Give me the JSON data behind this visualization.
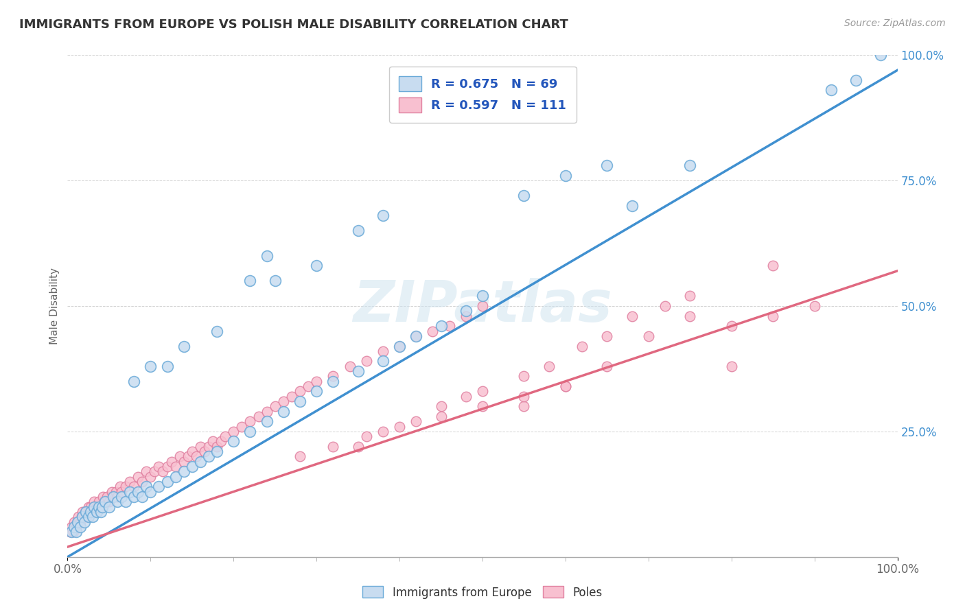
{
  "title": "IMMIGRANTS FROM EUROPE VS POLISH MALE DISABILITY CORRELATION CHART",
  "source": "Source: ZipAtlas.com",
  "ylabel": "Male Disability",
  "xlim": [
    0,
    100
  ],
  "ylim": [
    0,
    100
  ],
  "xticklabels": [
    "0.0%",
    "100.0%"
  ],
  "yticks": [
    25,
    50,
    75,
    100
  ],
  "yticklabels": [
    "25.0%",
    "50.0%",
    "75.0%",
    "100.0%"
  ],
  "legend_r1": "R = 0.675",
  "legend_n1": "N = 69",
  "legend_r2": "R = 0.597",
  "legend_n2": "N = 111",
  "color_blue_fill": "#c8dcf0",
  "color_blue_edge": "#6aaad8",
  "color_pink_fill": "#f8c0d0",
  "color_pink_edge": "#e080a0",
  "color_blue_line": "#4090d0",
  "color_pink_line": "#e06880",
  "watermark": "ZIPatlas",
  "blue_line_x0": 0,
  "blue_line_y0": 0,
  "blue_line_x1": 100,
  "blue_line_y1": 97,
  "pink_line_x0": 0,
  "pink_line_y0": 2,
  "pink_line_x1": 100,
  "pink_line_y1": 57,
  "blue_scatter_x": [
    0.5,
    0.8,
    1.0,
    1.2,
    1.5,
    1.8,
    2.0,
    2.2,
    2.5,
    2.8,
    3.0,
    3.2,
    3.5,
    3.8,
    4.0,
    4.2,
    4.5,
    5.0,
    5.5,
    6.0,
    6.5,
    7.0,
    7.5,
    8.0,
    8.5,
    9.0,
    9.5,
    10.0,
    11.0,
    12.0,
    13.0,
    14.0,
    15.0,
    16.0,
    17.0,
    18.0,
    20.0,
    22.0,
    24.0,
    26.0,
    28.0,
    30.0,
    32.0,
    35.0,
    38.0,
    40.0,
    42.0,
    45.0,
    48.0,
    50.0,
    22.0,
    24.0,
    35.0,
    38.0,
    55.0,
    60.0,
    65.0,
    68.0,
    75.0,
    92.0,
    95.0,
    98.0,
    12.0,
    14.0,
    18.0,
    25.0,
    30.0,
    8.0,
    10.0
  ],
  "blue_scatter_y": [
    5,
    6,
    5,
    7,
    6,
    8,
    7,
    9,
    8,
    9,
    8,
    10,
    9,
    10,
    9,
    10,
    11,
    10,
    12,
    11,
    12,
    11,
    13,
    12,
    13,
    12,
    14,
    13,
    14,
    15,
    16,
    17,
    18,
    19,
    20,
    21,
    23,
    25,
    27,
    29,
    31,
    33,
    35,
    37,
    39,
    42,
    44,
    46,
    49,
    52,
    55,
    60,
    65,
    68,
    72,
    76,
    78,
    70,
    78,
    93,
    95,
    100,
    38,
    42,
    45,
    55,
    58,
    35,
    38
  ],
  "pink_scatter_x": [
    0.3,
    0.5,
    0.7,
    0.8,
    1.0,
    1.2,
    1.3,
    1.5,
    1.7,
    1.8,
    2.0,
    2.2,
    2.3,
    2.5,
    2.7,
    2.8,
    3.0,
    3.2,
    3.5,
    3.8,
    4.0,
    4.3,
    4.5,
    4.8,
    5.0,
    5.3,
    5.5,
    5.8,
    6.0,
    6.3,
    6.5,
    7.0,
    7.5,
    8.0,
    8.5,
    9.0,
    9.5,
    10.0,
    10.5,
    11.0,
    11.5,
    12.0,
    12.5,
    13.0,
    13.5,
    14.0,
    14.5,
    15.0,
    15.5,
    16.0,
    16.5,
    17.0,
    17.5,
    18.0,
    18.5,
    19.0,
    20.0,
    21.0,
    22.0,
    23.0,
    24.0,
    25.0,
    26.0,
    27.0,
    28.0,
    29.0,
    30.0,
    32.0,
    34.0,
    36.0,
    38.0,
    40.0,
    42.0,
    44.0,
    46.0,
    48.0,
    50.0,
    35.0,
    38.0,
    42.0,
    45.0,
    48.0,
    50.0,
    55.0,
    58.0,
    62.0,
    65.0,
    68.0,
    72.0,
    75.0,
    80.0,
    85.0,
    55.0,
    60.0,
    65.0,
    70.0,
    75.0,
    80.0,
    85.0,
    90.0,
    28.0,
    32.0,
    36.0,
    40.0,
    45.0,
    50.0,
    55.0,
    60.0
  ],
  "pink_scatter_y": [
    5,
    6,
    5,
    7,
    6,
    7,
    8,
    7,
    8,
    9,
    8,
    9,
    8,
    10,
    9,
    10,
    9,
    11,
    10,
    11,
    10,
    12,
    11,
    12,
    11,
    13,
    12,
    13,
    12,
    14,
    13,
    14,
    15,
    14,
    16,
    15,
    17,
    16,
    17,
    18,
    17,
    18,
    19,
    18,
    20,
    19,
    20,
    21,
    20,
    22,
    21,
    22,
    23,
    22,
    23,
    24,
    25,
    26,
    27,
    28,
    29,
    30,
    31,
    32,
    33,
    34,
    35,
    36,
    38,
    39,
    41,
    42,
    44,
    45,
    46,
    48,
    50,
    22,
    25,
    27,
    30,
    32,
    33,
    36,
    38,
    42,
    44,
    48,
    50,
    52,
    46,
    58,
    30,
    34,
    38,
    44,
    48,
    38,
    48,
    50,
    20,
    22,
    24,
    26,
    28,
    30,
    32,
    34
  ]
}
